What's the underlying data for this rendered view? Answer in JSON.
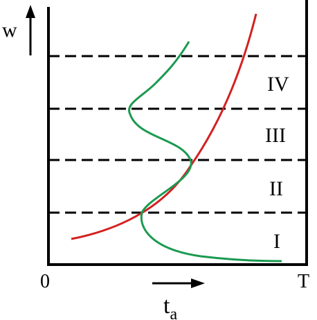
{
  "labels": {
    "y_axis": "w",
    "x_axis_main": "t",
    "x_axis_sub": "a",
    "origin": "0",
    "x_end": "T"
  },
  "zones": [
    "I",
    "II",
    "III",
    "IV"
  ],
  "colors": {
    "axes": "#000000",
    "dashed_lines": "#000000",
    "red_curve": "#d42020",
    "green_curve": "#1a9a50"
  }
}
